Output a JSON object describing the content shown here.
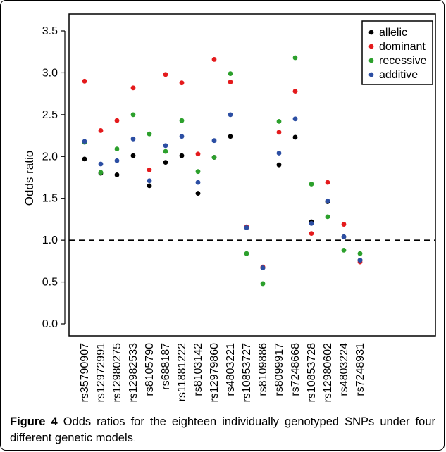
{
  "chart_data": {
    "type": "scatter",
    "ylabel": "Odds ratio",
    "ylim": [
      0,
      3.5
    ],
    "yticks": [
      "0.0",
      "0.5",
      "1.0",
      "1.5",
      "2.0",
      "2.5",
      "3.0",
      "3.5"
    ],
    "reference_line": 1.0,
    "legend_position": "top-right",
    "categories": [
      "rs35790907",
      "rs12972991",
      "rs12980275",
      "rs12982533",
      "rs8105790",
      "rs688187",
      "rs11881222",
      "rs8103142",
      "rs12979860",
      "rs4803221",
      "rs10853727",
      "rs8109886",
      "rs8099917",
      "rs7248668",
      "rs10853728",
      "rs12980602",
      "rs4803224",
      "rs7248931"
    ],
    "series": [
      {
        "name": "allelic",
        "color": "#000000",
        "values": [
          1.97,
          1.8,
          1.78,
          2.01,
          1.65,
          1.93,
          2.01,
          1.56,
          1.99,
          2.24,
          1.15,
          0.67,
          1.9,
          2.23,
          1.22,
          1.46,
          1.04,
          0.76
        ]
      },
      {
        "name": "dominant",
        "color": "#e41a1c",
        "values": [
          2.9,
          2.31,
          2.43,
          2.82,
          1.84,
          2.98,
          2.88,
          2.03,
          3.16,
          2.89,
          1.16,
          0.68,
          2.29,
          2.78,
          1.08,
          1.69,
          1.19,
          0.74
        ]
      },
      {
        "name": "recessive",
        "color": "#2ca02c",
        "values": [
          2.17,
          1.81,
          2.09,
          2.5,
          2.27,
          2.06,
          2.43,
          1.82,
          1.99,
          2.99,
          0.84,
          0.48,
          2.42,
          3.18,
          1.67,
          1.28,
          0.88,
          0.84
        ]
      },
      {
        "name": "additive",
        "color": "#2c4ea3",
        "values": [
          2.18,
          1.91,
          1.95,
          2.21,
          1.71,
          2.13,
          2.24,
          1.69,
          2.19,
          2.5,
          1.15,
          0.67,
          2.04,
          2.45,
          1.2,
          1.47,
          1.04,
          0.76
        ]
      }
    ]
  },
  "caption": {
    "bold": "Figure 4",
    "text": " Odds ratios for the eighteen individually genotyped SNPs under four different genetic models",
    "end": "."
  }
}
